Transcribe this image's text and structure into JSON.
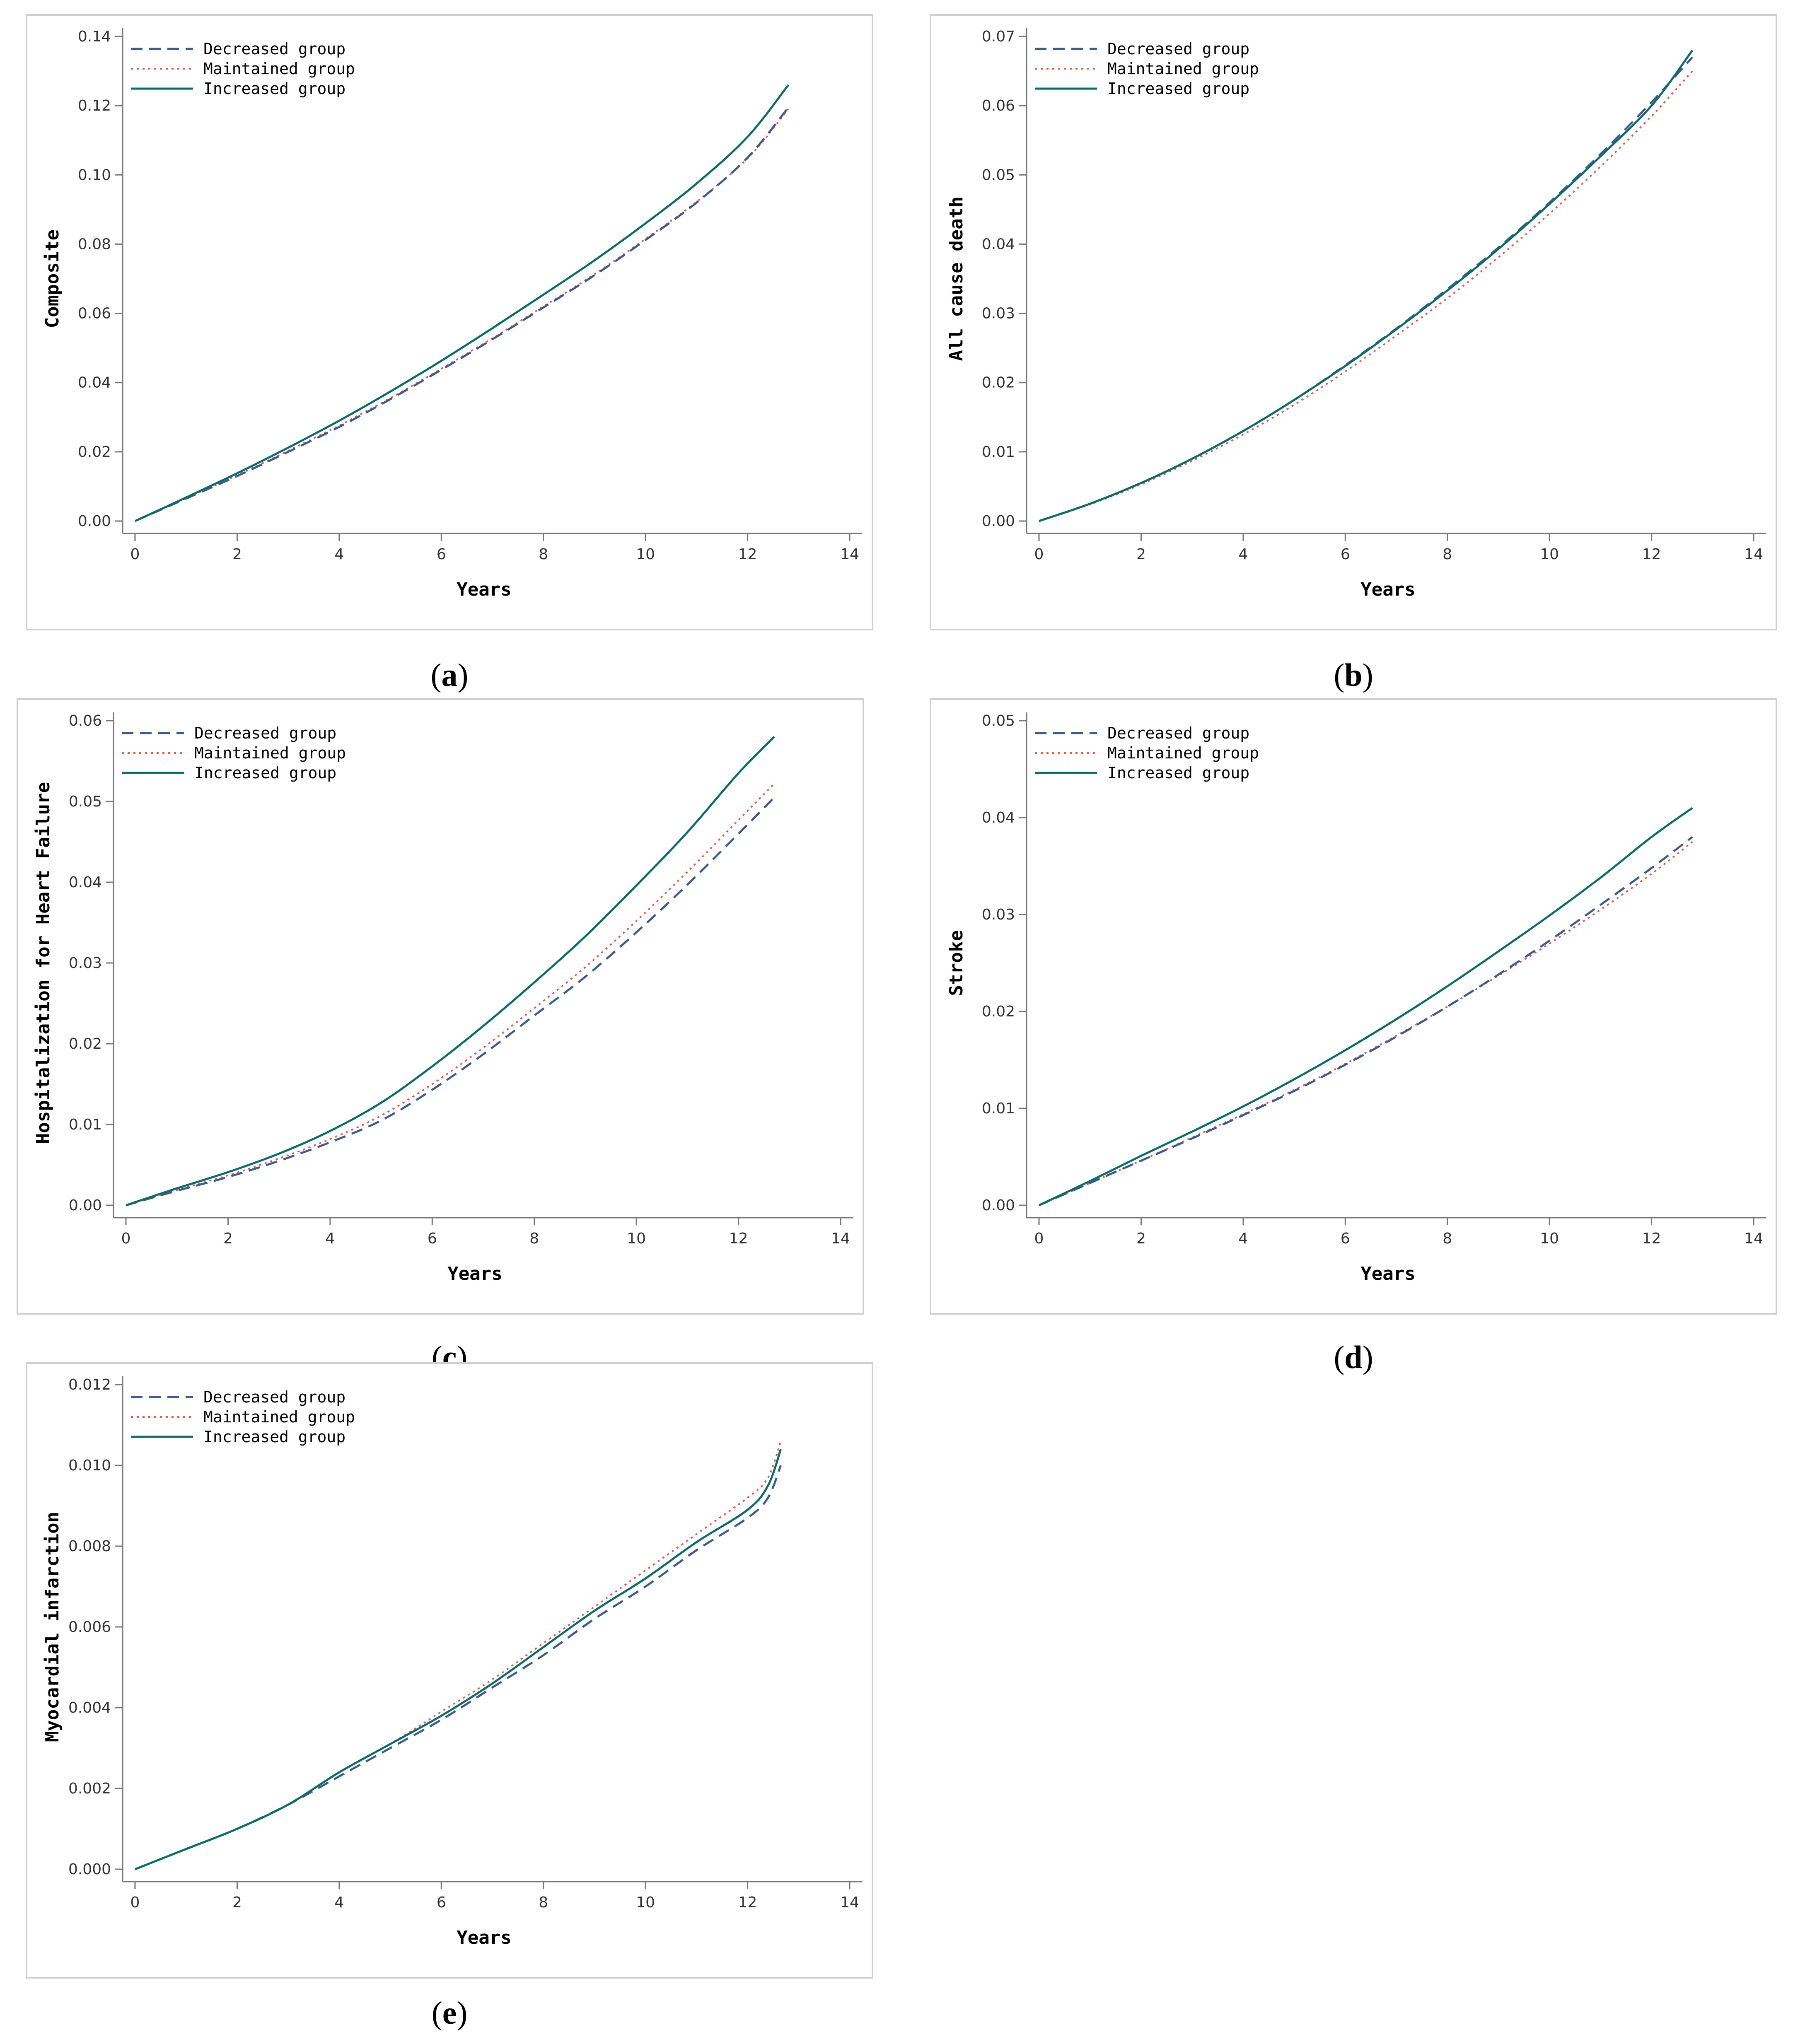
{
  "colors": {
    "decreased": "#3f5a8c",
    "maintained": "#e05a4e",
    "increased": "#0e6b67"
  },
  "legend": {
    "decreased": "Decreased group",
    "maintained": "Maintained group",
    "increased": "Increased group"
  },
  "chart_data": [
    {
      "id": "a",
      "type": "line",
      "caption_letter": "a",
      "xlabel": "Years",
      "ylabel": "Composite",
      "xlim": [
        0,
        14
      ],
      "ylim": [
        0,
        0.14
      ],
      "xticks": [
        0,
        2,
        4,
        6,
        8,
        10,
        12,
        14
      ],
      "yticks": [
        0.0,
        0.02,
        0.04,
        0.06,
        0.08,
        0.1,
        0.12,
        0.14
      ],
      "ytick_labels": [
        "0.00",
        "0.02",
        "0.04",
        "0.06",
        "0.08",
        "0.10",
        "0.12",
        "0.14"
      ],
      "xtick_labels": [
        "0",
        "2",
        "4",
        "6",
        "8",
        "10",
        "12",
        "14"
      ],
      "series": [
        {
          "name": "Decreased group",
          "key": "decreased",
          "x": [
            0,
            1,
            2,
            3,
            4,
            5,
            6,
            7,
            8,
            9,
            10,
            11,
            12,
            12.8
          ],
          "y": [
            0,
            0.0065,
            0.013,
            0.02,
            0.0272,
            0.0352,
            0.0437,
            0.0525,
            0.0617,
            0.071,
            0.0812,
            0.092,
            0.105,
            0.1195
          ]
        },
        {
          "name": "Maintained group",
          "key": "maintained",
          "x": [
            0,
            1,
            2,
            3,
            4,
            5,
            6,
            7,
            8,
            9,
            10,
            11,
            12,
            12.8
          ],
          "y": [
            0,
            0.0066,
            0.0132,
            0.0203,
            0.0276,
            0.0355,
            0.044,
            0.0528,
            0.062,
            0.0713,
            0.0815,
            0.0922,
            0.1048,
            0.119
          ]
        },
        {
          "name": "Increased group",
          "key": "increased",
          "x": [
            0,
            1,
            2,
            3,
            4,
            5,
            6,
            7,
            8,
            9,
            10,
            11,
            12,
            12.8
          ],
          "y": [
            0,
            0.0068,
            0.0138,
            0.0212,
            0.029,
            0.0374,
            0.0463,
            0.0557,
            0.0654,
            0.0753,
            0.086,
            0.0975,
            0.111,
            0.126
          ]
        }
      ]
    },
    {
      "id": "b",
      "type": "line",
      "caption_letter": "b",
      "xlabel": "Years",
      "ylabel": "All cause death",
      "xlim": [
        0,
        14
      ],
      "ylim": [
        0,
        0.07
      ],
      "xticks": [
        0,
        2,
        4,
        6,
        8,
        10,
        12,
        14
      ],
      "yticks": [
        0.0,
        0.01,
        0.02,
        0.03,
        0.04,
        0.05,
        0.06,
        0.07
      ],
      "ytick_labels": [
        "0.00",
        "0.01",
        "0.02",
        "0.03",
        "0.04",
        "0.05",
        "0.06",
        "0.07"
      ],
      "xtick_labels": [
        "0",
        "2",
        "4",
        "6",
        "8",
        "10",
        "12",
        "14"
      ],
      "series": [
        {
          "name": "Decreased group",
          "key": "decreased",
          "x": [
            0,
            1,
            2,
            3,
            4,
            5,
            6,
            7,
            8,
            9,
            10,
            11,
            12,
            12.8
          ],
          "y": [
            0,
            0.0025,
            0.0055,
            0.009,
            0.013,
            0.0175,
            0.0225,
            0.0278,
            0.0335,
            0.0395,
            0.046,
            0.053,
            0.0605,
            0.067
          ]
        },
        {
          "name": "Maintained group",
          "key": "maintained",
          "x": [
            0,
            1,
            2,
            3,
            4,
            5,
            6,
            7,
            8,
            9,
            10,
            11,
            12,
            12.8
          ],
          "y": [
            0,
            0.0024,
            0.0053,
            0.0087,
            0.0125,
            0.0168,
            0.0216,
            0.0268,
            0.0322,
            0.0381,
            0.0444,
            0.0512,
            0.0585,
            0.065
          ]
        },
        {
          "name": "Increased group",
          "key": "increased",
          "x": [
            0,
            1,
            2,
            3,
            4,
            5,
            6,
            7,
            8,
            9,
            10,
            11,
            12,
            12.8
          ],
          "y": [
            0,
            0.0025,
            0.0055,
            0.009,
            0.013,
            0.0175,
            0.0224,
            0.0277,
            0.0333,
            0.0393,
            0.0458,
            0.0527,
            0.06,
            0.068
          ]
        }
      ]
    },
    {
      "id": "c",
      "type": "line",
      "caption_letter": "c",
      "xlabel": "Years",
      "ylabel": "Hospitalization for Heart Failure",
      "xlim": [
        0,
        14
      ],
      "ylim": [
        0,
        0.06
      ],
      "xticks": [
        0,
        2,
        4,
        6,
        8,
        10,
        12,
        14
      ],
      "yticks": [
        0.0,
        0.01,
        0.02,
        0.03,
        0.04,
        0.05,
        0.06
      ],
      "ytick_labels": [
        "0.00",
        "0.01",
        "0.02",
        "0.03",
        "0.04",
        "0.05",
        "0.06"
      ],
      "xtick_labels": [
        "0",
        "2",
        "4",
        "6",
        "8",
        "10",
        "12",
        "14"
      ],
      "series": [
        {
          "name": "Decreased group",
          "key": "decreased",
          "x": [
            0,
            1,
            2,
            3,
            4,
            5,
            6,
            7,
            8,
            9,
            10,
            11,
            12,
            12.7
          ],
          "y": [
            0,
            0.0018,
            0.0035,
            0.0055,
            0.0078,
            0.0105,
            0.0143,
            0.0187,
            0.0235,
            0.0283,
            0.0338,
            0.0397,
            0.046,
            0.0505
          ]
        },
        {
          "name": "Maintained group",
          "key": "maintained",
          "x": [
            0,
            1,
            2,
            3,
            4,
            5,
            6,
            7,
            8,
            9,
            10,
            11,
            12,
            12.7
          ],
          "y": [
            0,
            0.0019,
            0.0037,
            0.0058,
            0.0082,
            0.0111,
            0.015,
            0.0195,
            0.0244,
            0.0295,
            0.0352,
            0.0413,
            0.0477,
            0.0522
          ]
        },
        {
          "name": "Increased group",
          "key": "increased",
          "x": [
            0,
            1,
            2,
            3,
            4,
            5,
            6,
            7,
            8,
            9,
            10,
            11,
            12,
            12.7
          ],
          "y": [
            0,
            0.0021,
            0.0041,
            0.0064,
            0.0092,
            0.0127,
            0.0172,
            0.0222,
            0.0276,
            0.0333,
            0.0396,
            0.0462,
            0.0535,
            0.058
          ]
        }
      ]
    },
    {
      "id": "d",
      "type": "line",
      "caption_letter": "d",
      "xlabel": "Years",
      "ylabel": "Stroke",
      "xlim": [
        0,
        14
      ],
      "ylim": [
        0,
        0.05
      ],
      "xticks": [
        0,
        2,
        4,
        6,
        8,
        10,
        12,
        14
      ],
      "yticks": [
        0.0,
        0.01,
        0.02,
        0.03,
        0.04,
        0.05
      ],
      "ytick_labels": [
        "0.00",
        "0.01",
        "0.02",
        "0.03",
        "0.04",
        "0.05"
      ],
      "xtick_labels": [
        "0",
        "2",
        "4",
        "6",
        "8",
        "10",
        "12",
        "14"
      ],
      "series": [
        {
          "name": "Decreased group",
          "key": "decreased",
          "x": [
            0,
            1,
            2,
            3,
            4,
            5,
            6,
            7,
            8,
            9,
            10,
            11,
            12,
            12.8
          ],
          "y": [
            0,
            0.0023,
            0.0046,
            0.0069,
            0.0093,
            0.0118,
            0.0145,
            0.0174,
            0.0205,
            0.0238,
            0.0273,
            0.031,
            0.0348,
            0.038
          ]
        },
        {
          "name": "Maintained group",
          "key": "maintained",
          "x": [
            0,
            1,
            2,
            3,
            4,
            5,
            6,
            7,
            8,
            9,
            10,
            11,
            12,
            12.8
          ],
          "y": [
            0,
            0.0023,
            0.0046,
            0.007,
            0.0094,
            0.0119,
            0.0146,
            0.0175,
            0.0205,
            0.0237,
            0.027,
            0.0305,
            0.0342,
            0.0375
          ]
        },
        {
          "name": "Increased group",
          "key": "increased",
          "x": [
            0,
            1,
            2,
            3,
            4,
            5,
            6,
            7,
            8,
            9,
            10,
            11,
            12,
            12.8
          ],
          "y": [
            0,
            0.0025,
            0.0051,
            0.0076,
            0.0102,
            0.013,
            0.016,
            0.0192,
            0.0226,
            0.0262,
            0.0299,
            0.0338,
            0.038,
            0.041
          ]
        }
      ]
    },
    {
      "id": "e",
      "type": "line",
      "caption_letter": "e",
      "xlabel": "Years",
      "ylabel": "Myocardial infarction",
      "xlim": [
        0,
        14
      ],
      "ylim": [
        0,
        0.012
      ],
      "xticks": [
        0,
        2,
        4,
        6,
        8,
        10,
        12,
        14
      ],
      "yticks": [
        0.0,
        0.002,
        0.004,
        0.006,
        0.008,
        0.01,
        0.012
      ],
      "ytick_labels": [
        "0.000",
        "0.002",
        "0.004",
        "0.006",
        "0.008",
        "0.010",
        "0.012"
      ],
      "xtick_labels": [
        "0",
        "2",
        "4",
        "6",
        "8",
        "10",
        "12",
        "14"
      ],
      "series": [
        {
          "name": "Decreased group",
          "key": "decreased",
          "x": [
            0,
            1,
            2,
            3,
            4,
            5,
            6,
            7,
            8,
            9,
            10,
            11,
            12,
            12.4,
            12.65
          ],
          "y": [
            0,
            0.0005,
            0.001,
            0.0016,
            0.0023,
            0.003,
            0.0037,
            0.0045,
            0.0053,
            0.0062,
            0.007,
            0.0079,
            0.0087,
            0.0092,
            0.01
          ]
        },
        {
          "name": "Maintained group",
          "key": "maintained",
          "x": [
            0,
            1,
            2,
            3,
            4,
            5,
            6,
            7,
            8,
            9,
            10,
            11,
            12,
            12.4,
            12.65
          ],
          "y": [
            0,
            0.0005,
            0.001,
            0.0016,
            0.0024,
            0.0031,
            0.0039,
            0.0047,
            0.0056,
            0.0065,
            0.0074,
            0.0083,
            0.0092,
            0.0097,
            0.0106
          ]
        },
        {
          "name": "Increased group",
          "key": "increased",
          "x": [
            0,
            1,
            2,
            3,
            4,
            5,
            6,
            7,
            8,
            9,
            10,
            11,
            12,
            12.4,
            12.65
          ],
          "y": [
            0,
            0.0005,
            0.001,
            0.0016,
            0.0024,
            0.0031,
            0.0038,
            0.0046,
            0.0055,
            0.0064,
            0.0072,
            0.0081,
            0.0089,
            0.0095,
            0.0104
          ]
        }
      ]
    }
  ]
}
